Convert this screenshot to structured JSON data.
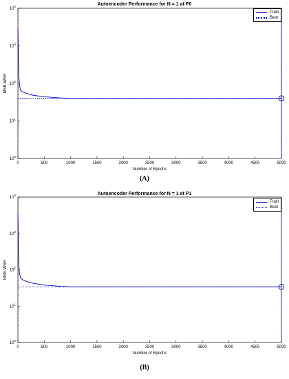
{
  "captions": [
    "(A)",
    "(B)"
  ],
  "chart_data": [
    {
      "type": "line",
      "title": "Autoencoder Performance for N = 1 at P0",
      "xlabel": "Number of Epochs",
      "ylabel": "MSE-WSR",
      "yscale": "log",
      "xlim": [
        0,
        5000
      ],
      "ylim": [
        1,
        10000
      ],
      "x_ticks": [
        "0",
        "500",
        "1000",
        "1500",
        "2000",
        "2500",
        "3000",
        "3500",
        "4000",
        "4500",
        "5000"
      ],
      "y_ticks": [
        "10^0",
        "10^1",
        "10^2",
        "10^3",
        "10^4"
      ],
      "legend_position": "top-right",
      "series": [
        {
          "name": "Train",
          "color": "#0000cc",
          "style": "solid",
          "x": [
            0,
            5,
            10,
            20,
            30,
            50,
            100,
            200,
            300,
            500,
            800,
            1000,
            1500,
            2000,
            3000,
            4000,
            5000
          ],
          "y": [
            3000,
            1500,
            500,
            150,
            90,
            65,
            58,
            52,
            48,
            44,
            41,
            40,
            40,
            40,
            40,
            40,
            40
          ]
        },
        {
          "name": "Best",
          "color": "#0000cc",
          "style": "dotted",
          "best_x": 5000,
          "best_y": 40
        }
      ]
    },
    {
      "type": "line",
      "title": "Autoencoder Performance for N = 1 at P1",
      "xlabel": "Number of Epochs",
      "ylabel": "MSE-WSR",
      "yscale": "log",
      "xlim": [
        0,
        5000
      ],
      "ylim": [
        1,
        10000
      ],
      "x_ticks": [
        "0",
        "500",
        "1000",
        "1500",
        "2000",
        "2500",
        "3000",
        "3500",
        "4000",
        "4500",
        "5000"
      ],
      "y_ticks": [
        "10^0",
        "10^1",
        "10^2",
        "10^3",
        "10^4"
      ],
      "legend_position": "top-right",
      "series": [
        {
          "name": "Train",
          "color": "#0000cc",
          "style": "solid",
          "x": [
            0,
            5,
            10,
            20,
            30,
            50,
            100,
            200,
            300,
            500,
            800,
            1000,
            1500,
            2000,
            3000,
            4000,
            5000
          ],
          "y": [
            3500,
            1500,
            400,
            120,
            80,
            60,
            52,
            46,
            42,
            38,
            35,
            34,
            34,
            34,
            34,
            34,
            34
          ]
        },
        {
          "name": "Best",
          "color": "#0000cc",
          "style": "dotted",
          "best_x": 5000,
          "best_y": 34
        }
      ]
    }
  ]
}
